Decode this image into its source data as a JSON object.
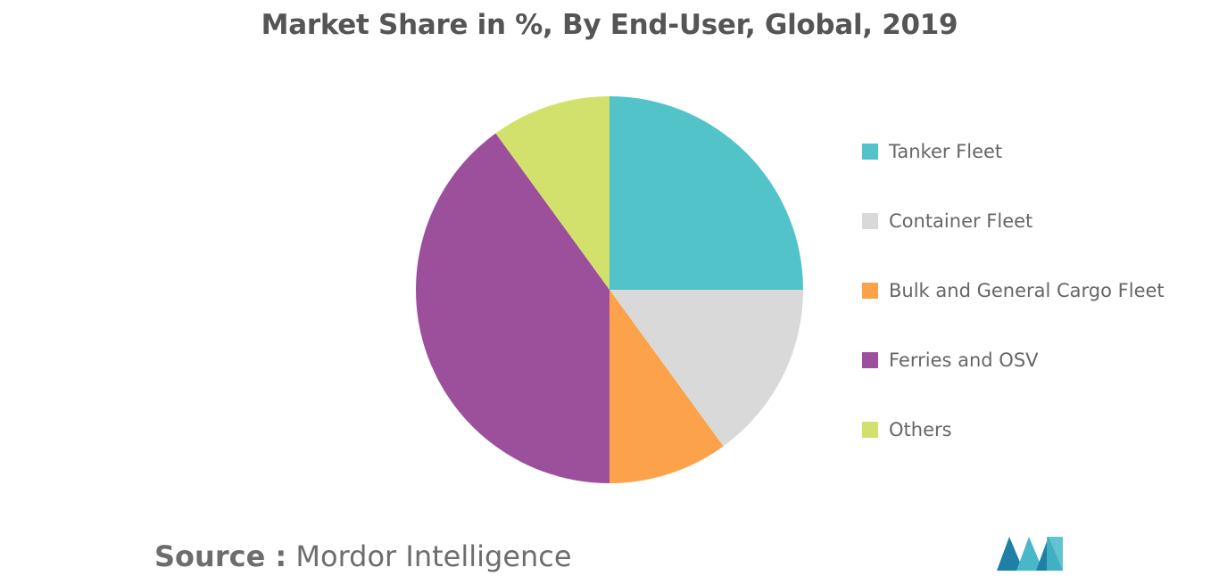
{
  "chart_data": {
    "type": "pie",
    "title": "Market Share in %, By End-User, Global, 2019",
    "categories": [
      "Tanker Fleet",
      "Container Fleet",
      "Bulk and General Cargo Fleet",
      "Ferries and OSV",
      "Others"
    ],
    "values": [
      25,
      15,
      10,
      40,
      10
    ],
    "colors": [
      "#52c3c9",
      "#d9d9d9",
      "#fba24b",
      "#9c509c",
      "#d2e16b"
    ],
    "legend_position": "right"
  },
  "source": {
    "prefix": "Source :",
    "text": "Mordor Intelligence"
  },
  "logo": {
    "icon": "mordor-intelligence-logo-icon",
    "colors": [
      "#1e7fa7",
      "#48b8c8"
    ]
  }
}
